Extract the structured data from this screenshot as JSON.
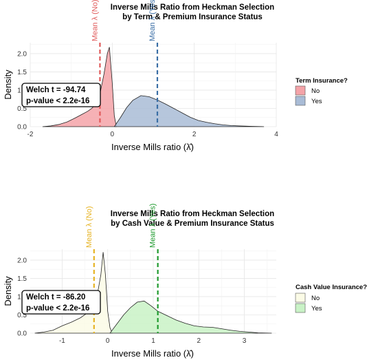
{
  "chart_data": [
    {
      "type": "area",
      "title_lines": [
        "Inverse Mills Ratio from Heckman Selection",
        "by Term & Premium Insurance Status"
      ],
      "xlabel": "Inverse Mills ratio (λ̂)",
      "ylabel": "Density",
      "xlim": [
        -2,
        4
      ],
      "ylim": [
        0,
        2.3
      ],
      "xticks": [
        -2,
        0,
        2,
        4
      ],
      "yticks": [
        "0.0",
        "0.5",
        "1.0",
        "1.5",
        "2.0"
      ],
      "grid": true,
      "legend": {
        "title": "Term Insurance?",
        "position": "right"
      },
      "series": [
        {
          "name": "No",
          "color": "#f4a3a8",
          "x": [
            -1.7,
            -1.5,
            -1.3,
            -1.1,
            -0.9,
            -0.75,
            -0.6,
            -0.5,
            -0.4,
            -0.3,
            -0.2,
            -0.12,
            -0.07,
            0.0,
            0.05,
            0.1
          ],
          "y": [
            0.0,
            0.02,
            0.06,
            0.13,
            0.24,
            0.33,
            0.42,
            0.5,
            0.62,
            0.9,
            1.45,
            2.0,
            2.18,
            1.2,
            0.3,
            0.0
          ]
        },
        {
          "name": "Yes",
          "color": "#a9bcd6",
          "x": [
            0.05,
            0.2,
            0.35,
            0.5,
            0.7,
            0.9,
            1.1,
            1.3,
            1.5,
            1.7,
            1.9,
            2.1,
            2.3,
            2.5,
            2.7,
            2.9,
            3.1,
            3.4,
            3.7
          ],
          "y": [
            0.0,
            0.25,
            0.52,
            0.72,
            0.85,
            0.82,
            0.73,
            0.62,
            0.5,
            0.38,
            0.26,
            0.17,
            0.12,
            0.08,
            0.05,
            0.03,
            0.02,
            0.01,
            0.0
          ]
        }
      ],
      "means": [
        {
          "label": "Mean λ (No)",
          "x": -0.3,
          "color": "#e05a5a"
        },
        {
          "label": "Mean λ (Yes)",
          "x": 1.1,
          "color": "#3a6ea5"
        }
      ],
      "stat_lines": [
        "Welch t = -94.74",
        "p-value < 2.2e-16"
      ]
    },
    {
      "type": "area",
      "title_lines": [
        "Inverse Mills Ratio from Heckman Selection",
        "by Cash Value & Premium Insurance Status"
      ],
      "xlabel": "Inverse Mills ratio (λ̂)",
      "ylabel": "Density",
      "xlim": [
        -1.7,
        3.7
      ],
      "ylim": [
        0,
        2.3
      ],
      "xticks": [
        -1,
        0,
        1,
        2,
        3
      ],
      "yticks": [
        "0.0",
        "0.5",
        "1.0",
        "1.5",
        "2.0"
      ],
      "grid": true,
      "legend": {
        "title": "Cash Value Insurance?",
        "position": "right"
      },
      "series": [
        {
          "name": "No",
          "color": "#fbfbe6",
          "x": [
            -1.6,
            -1.4,
            -1.2,
            -1.0,
            -0.8,
            -0.6,
            -0.45,
            -0.35,
            -0.25,
            -0.15,
            -0.1,
            -0.05,
            0.0,
            0.05,
            0.1
          ],
          "y": [
            0.0,
            0.03,
            0.08,
            0.2,
            0.3,
            0.42,
            0.55,
            0.65,
            0.9,
            1.6,
            2.22,
            1.6,
            0.6,
            0.15,
            0.0
          ]
        },
        {
          "name": "Yes",
          "color": "#c9f2c6",
          "x": [
            0.05,
            0.2,
            0.35,
            0.5,
            0.65,
            0.8,
            0.95,
            1.1,
            1.3,
            1.5,
            1.7,
            1.9,
            2.1,
            2.3,
            2.5,
            2.7,
            2.9,
            3.1,
            3.3,
            3.6
          ],
          "y": [
            0.0,
            0.25,
            0.5,
            0.7,
            0.85,
            0.88,
            0.75,
            0.6,
            0.48,
            0.36,
            0.27,
            0.2,
            0.17,
            0.16,
            0.12,
            0.08,
            0.05,
            0.03,
            0.01,
            0.0
          ]
        }
      ],
      "means": [
        {
          "label": "Mean λ (No)",
          "x": -0.3,
          "color": "#e6b323"
        },
        {
          "label": "Mean λ (Yes)",
          "x": 1.1,
          "color": "#1f9a2e"
        }
      ],
      "stat_lines": [
        "Welch t = -86.20",
        "p-value < 2.2e-16"
      ]
    }
  ]
}
